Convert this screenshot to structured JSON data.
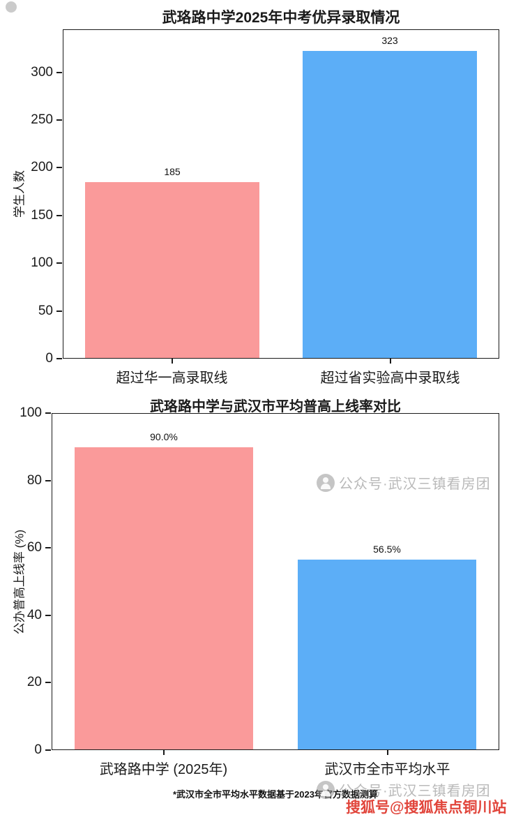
{
  "footnote": "*武汉市全市平均水平数据基于2023年官方数据测算",
  "watermarks": {
    "mid_text": "公众号·武汉三镇看房团",
    "bottom_text": "公众号·武汉三镇看房团",
    "red_text": "搜狐号@搜狐焦点铜川站",
    "icon": "wechat-official-account-logo"
  },
  "colors": {
    "bar_pink": "#fa9a9a",
    "bar_blue": "#5caef7",
    "axis": "#1a1a1a",
    "watermark_gray": "#949494",
    "watermark_red": "#de3126"
  },
  "chart_data": [
    {
      "type": "bar",
      "title": "武珞路中学2025年中考优异录取情况",
      "xlabel": "",
      "ylabel": "学生人数",
      "categories": [
        "超过华一高录取线",
        "超过省实验高中录取线"
      ],
      "values": [
        185,
        323
      ],
      "value_labels": [
        "185",
        "323"
      ],
      "bar_colors": [
        "#fa9a9a",
        "#5caef7"
      ],
      "ylim": [
        0,
        345
      ],
      "yticks": [
        0,
        50,
        100,
        150,
        200,
        250,
        300
      ],
      "grid": false,
      "legend": "none"
    },
    {
      "type": "bar",
      "title": "武珞路中学与武汉市平均普高上线率对比",
      "xlabel": "",
      "ylabel": "公办普高上线率 (%)",
      "categories": [
        "武珞路中学 (2025年)",
        "武汉市全市平均水平"
      ],
      "values": [
        90.0,
        56.5
      ],
      "value_labels": [
        "90.0%",
        "56.5%"
      ],
      "bar_colors": [
        "#fa9a9a",
        "#5caef7"
      ],
      "ylim": [
        0,
        100
      ],
      "yticks": [
        0,
        20,
        40,
        60,
        80,
        100
      ],
      "grid": false,
      "legend": "none"
    }
  ]
}
